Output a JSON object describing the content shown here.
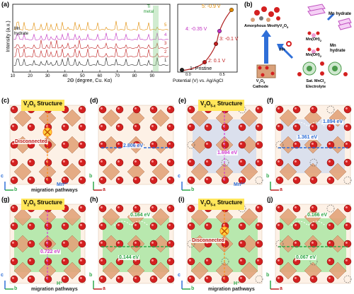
{
  "panel_labels": [
    "(a)",
    "(b)",
    "(c)",
    "(d)",
    "(e)",
    "(f)",
    "(g)",
    "(h)",
    "(i)",
    "(j)"
  ],
  "panel_a": {
    "xrd": {
      "ylabel": "Intensity (a.u.)",
      "xlabel": "2Θ (degree, Cu. Kα)",
      "xticks": [
        "10",
        "20",
        "30",
        "40",
        "50",
        "60",
        "70",
        "80",
        "90"
      ],
      "ti_label": "Ti metal",
      "mn_label": "Mn hydrate",
      "curve_labels": [
        "1",
        "2",
        "3",
        "4",
        "5"
      ]
    },
    "cv": {
      "xlabel": "Potential (V) vs. Ag/AgCl",
      "xticks": [
        "0.0",
        "0.5"
      ],
      "points": [
        "1: Pristine",
        "2: 0.1 V",
        "3: -0.1 V",
        "4: -0.35 V",
        "5: -0.9 V"
      ]
    }
  },
  "panel_b": {
    "amorphous": "Amorphous Mn",
    "amorphous_formula": "xH",
    "amorphous_tail": "yV",
    "amorphous_end": "2",
    "amorphous_o": "O",
    "amorphous_o_sub": "5",
    "mn_hydrate_1": "Mn hydrate",
    "mn_hydrate_2": "Mn hydrate",
    "mnoh_1": "Mn(OH)",
    "mnoh_2": "Mn(OH)",
    "mnoh_sub": "2",
    "h_plus": "H+",
    "cathode": "V2O5 Cathode",
    "cathode_title": "V",
    "cathode_sub1": "2",
    "cathode_o": "O",
    "cathode_sub2": "5",
    "cathode_word": "Cathode",
    "electrolyte": "Sat. MnCl",
    "electrolyte_sub": "2",
    "electrolyte_word": "Electrolyte",
    "ions": [
      "Cl",
      "Mn"
    ]
  },
  "panel_c": {
    "title_v": "V",
    "title_s1": "2",
    "title_o": "O",
    "title_s2": "5",
    "title_word": " Structure",
    "disconnected": "Disconnected",
    "ion": "Mn²⁺",
    "footer": "migration pathways"
  },
  "panel_d": {
    "energy": "2.806 eV"
  },
  "panel_e": {
    "title_v": "V",
    "title_s1": "2",
    "title_o": "O",
    "title_s2": "5-x",
    "title_word": " Structure",
    "energy": "1.694 eV",
    "ion": "Mn²⁺"
  },
  "panel_f": {
    "energy1": "1.894 eV",
    "energy2": "1.361 eV"
  },
  "panel_g": {
    "title_v": "V",
    "title_s1": "2",
    "title_o": "O",
    "title_s2": "5",
    "title_word": " Structure",
    "energy": "0.722 eV",
    "ion": "H⁺",
    "footer": "migration pathways"
  },
  "panel_h": {
    "energy1": "0.164 eV",
    "energy2": "0.144 eV"
  },
  "panel_i": {
    "title_v": "V",
    "title_s1": "2",
    "title_o": "O",
    "title_s2": "5-x",
    "title_word": " Structure",
    "disconnected": "Disconnected",
    "ion": "H⁺",
    "footer": "migration pathways"
  },
  "panel_j": {
    "energy1": "0.166 eV",
    "energy2": "0.067 eV"
  },
  "axes": {
    "c": "c",
    "b": "b",
    "a": "a"
  },
  "colors": {
    "oxygen": "#d42020",
    "vanadium": "#d9a07a",
    "mn_path": "#2f6fd8",
    "h_path": "#2fa84a",
    "highlight": "#ffe65a",
    "orange": "#ff8c1a",
    "magenta": "#d43cd4"
  }
}
